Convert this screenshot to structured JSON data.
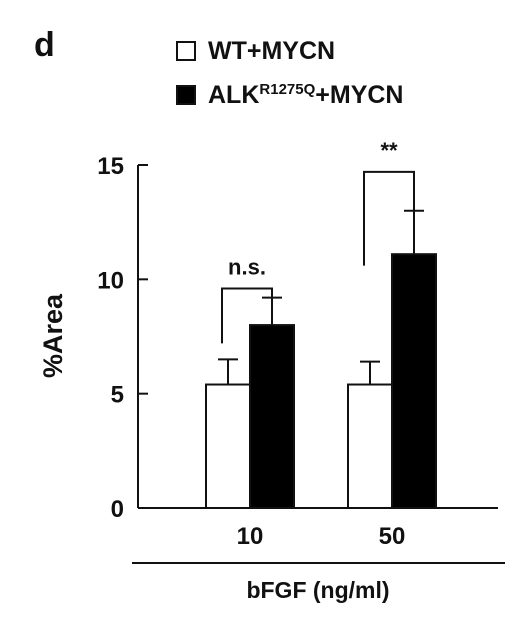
{
  "panel_label": "d",
  "legend": [
    {
      "base": "WT+MYCN",
      "sup": "",
      "tail": "",
      "fill": "#ffffff"
    },
    {
      "base": "ALK",
      "sup": "R1275Q",
      "tail": "+MYCN",
      "fill": "#000000"
    }
  ],
  "chart_data": {
    "type": "bar",
    "categories": [
      "10",
      "50"
    ],
    "series": [
      {
        "name": "WT+MYCN",
        "values": [
          5.4,
          5.4
        ],
        "errors": [
          1.1,
          1.0
        ],
        "fill": "#ffffff"
      },
      {
        "name": "ALKR1275Q+MYCN",
        "values": [
          8.0,
          11.1
        ],
        "errors": [
          1.2,
          1.9
        ],
        "fill": "#000000"
      }
    ],
    "ylabel": "%Area",
    "xlabel": "bFGF (ng/ml)",
    "ylim": [
      0,
      15
    ],
    "yticks": [
      0,
      5,
      10,
      15
    ],
    "significance": [
      "n.s.",
      "**"
    ],
    "grid": false,
    "legend_position": "top"
  }
}
